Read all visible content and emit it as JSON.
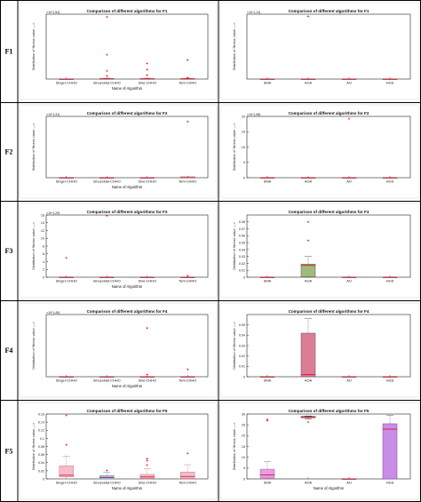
{
  "rows": [
    {
      "label": "F1"
    },
    {
      "label": "F2"
    },
    {
      "label": "F3"
    },
    {
      "label": "F4"
    },
    {
      "label": "F5"
    }
  ],
  "colors": {
    "grid_line": "#000000",
    "median": "#e8001c",
    "outlier": "#e8001c",
    "panel_bg": "#ffffff"
  },
  "chart_data": [
    {
      "type": "box",
      "title": "Comparison of different algorithms for F1",
      "ylabel": "Distribution of fitness value --->",
      "xlabel": "Name of Algorithm",
      "exponent": "×10^{-54}",
      "ylim": [
        0,
        2.4
      ],
      "yticks": [],
      "categories": [
        "Singer-CHHO",
        "Sinusoidal-CHHO",
        "Sine-CHHO",
        "Tent-CHHO"
      ],
      "boxes": [
        {
          "q1": 0,
          "median": 0,
          "q3": 0,
          "wlo": 0,
          "whi": 0,
          "outliers": [],
          "fill": "none",
          "stroke": "#555555"
        },
        {
          "q1": 0,
          "median": 0,
          "q3": 0.02,
          "wlo": 0,
          "whi": 0.03,
          "outliers": [
            2.3,
            0.9,
            0.3,
            0.12
          ],
          "fill": "none",
          "stroke": "#555555"
        },
        {
          "q1": 0,
          "median": 0,
          "q3": 0.02,
          "wlo": 0,
          "whi": 0.03,
          "outliers": [
            0.58,
            0.35,
            0.15
          ],
          "fill": "none",
          "stroke": "#555555"
        },
        {
          "q1": 0,
          "median": 0,
          "q3": 0.02,
          "wlo": 0,
          "whi": 0.03,
          "outliers": [
            0.7,
            0.05
          ],
          "fill": "none",
          "stroke": "#555555"
        }
      ]
    },
    {
      "type": "box",
      "title": "Comparison of different algorithms for F1",
      "ylabel": "Distribution of fitness value --->",
      "xlabel": "",
      "exponent": "×10^{-13}",
      "ylim": [
        0,
        15
      ],
      "yticks": [],
      "categories": [
        "SMA",
        "AOA",
        "AO",
        "HGS"
      ],
      "boxes": [
        {
          "q1": 0,
          "median": 0,
          "q3": 0,
          "wlo": 0,
          "whi": 0,
          "outliers": [],
          "fill": "none",
          "stroke": "#555555"
        },
        {
          "q1": 0,
          "median": 0,
          "q3": 0,
          "wlo": 0,
          "whi": 0,
          "outliers": [
            14.5
          ],
          "fill": "none",
          "stroke": "#555555"
        },
        {
          "q1": 0,
          "median": 0,
          "q3": 0,
          "wlo": 0,
          "whi": 0,
          "outliers": [],
          "fill": "none",
          "stroke": "#555555"
        },
        {
          "q1": 0,
          "median": 0,
          "q3": 0,
          "wlo": 0,
          "whi": 0,
          "outliers": [],
          "fill": "none",
          "stroke": "#555555"
        }
      ]
    },
    {
      "type": "box",
      "title": "Comparison of different algorithms for F2",
      "ylabel": "Distribution of fitness value --->",
      "xlabel": "Name of Algorithm",
      "exponent": "×10^{-31}",
      "ylim": [
        0,
        3.5
      ],
      "yticks": [],
      "categories": [
        "Singer-CHHO",
        "Sinusoidal-CHHO",
        "Sine-CHHO",
        "Tent-CHHO"
      ],
      "boxes": [
        {
          "q1": 0,
          "median": 0,
          "q3": 0,
          "wlo": 0,
          "whi": 0,
          "outliers": [],
          "fill": "none",
          "stroke": "#555555"
        },
        {
          "q1": 0,
          "median": 0,
          "q3": 0,
          "wlo": 0,
          "whi": 0,
          "outliers": [],
          "fill": "none",
          "stroke": "#555555"
        },
        {
          "q1": 0,
          "median": 0,
          "q3": 0,
          "wlo": 0,
          "whi": 0,
          "outliers": [],
          "fill": "none",
          "stroke": "#555555"
        },
        {
          "q1": 0,
          "median": 0,
          "q3": 0.05,
          "wlo": 0,
          "whi": 0.05,
          "outliers": [
            3.2
          ],
          "fill": "none",
          "stroke": "#555555"
        }
      ]
    },
    {
      "type": "box",
      "title": "Comparison of different algorithms for F2",
      "ylabel": "Distribution of fitness value --->",
      "xlabel": "",
      "exponent": "×10^{-98}",
      "ylim": [
        0,
        20
      ],
      "yticks": [
        "0",
        "5",
        "10",
        "15",
        "20"
      ],
      "categories": [
        "SMA",
        "AOA",
        "AO",
        "HGS"
      ],
      "boxes": [
        {
          "q1": 0,
          "median": 0,
          "q3": 0,
          "wlo": 0,
          "whi": 0,
          "outliers": [],
          "fill": "none",
          "stroke": "#555555"
        },
        {
          "q1": 0,
          "median": 0,
          "q3": 0,
          "wlo": 0,
          "whi": 0,
          "outliers": [],
          "fill": "none",
          "stroke": "#555555"
        },
        {
          "q1": 0,
          "median": 0,
          "q3": 0,
          "wlo": 0,
          "whi": 0,
          "outliers": [
            19.2
          ],
          "fill": "none",
          "stroke": "#555555"
        },
        {
          "q1": 0,
          "median": 0,
          "q3": 0,
          "wlo": 0,
          "whi": 0,
          "outliers": [],
          "fill": "none",
          "stroke": "#555555"
        }
      ]
    },
    {
      "type": "box",
      "title": "Comparison of different algorithms for F3",
      "ylabel": "Distribution of fitness value --->",
      "xlabel": "Name of Algorithm",
      "exponent": "×10^{-29}",
      "ylim": [
        0,
        16
      ],
      "yticks": [
        "0",
        "2",
        "4",
        "6",
        "8",
        "10",
        "12",
        "14",
        "16"
      ],
      "categories": [
        "Singer-CHHO",
        "Sinusoidal-CHHO",
        "Sine-CHHO",
        "Tent-CHHO"
      ],
      "boxes": [
        {
          "q1": 0,
          "median": 0,
          "q3": 0,
          "wlo": 0,
          "whi": 0,
          "outliers": [
            5
          ],
          "fill": "none",
          "stroke": "#555555"
        },
        {
          "q1": 0,
          "median": 0,
          "q3": 0,
          "wlo": 0,
          "whi": 0,
          "outliers": [
            15.8
          ],
          "fill": "none",
          "stroke": "#555555"
        },
        {
          "q1": 0,
          "median": 0,
          "q3": 0,
          "wlo": 0,
          "whi": 0,
          "outliers": [],
          "fill": "none",
          "stroke": "#555555"
        },
        {
          "q1": 0,
          "median": 0,
          "q3": 0,
          "wlo": 0,
          "whi": 0,
          "outliers": [
            0.4
          ],
          "fill": "none",
          "stroke": "#555555"
        }
      ]
    },
    {
      "type": "box",
      "title": "Comparison of different algorithms for F3",
      "ylabel": "Distribution of fitness value --->",
      "xlabel": "",
      "exponent": "",
      "ylim": [
        0,
        0.09
      ],
      "yticks": [
        "0",
        "0.01",
        "0.02",
        "0.03",
        "0.04",
        "0.05",
        "0.06",
        "0.07",
        "0.08"
      ],
      "categories": [
        "SMA",
        "AOA",
        "AO",
        "HGS"
      ],
      "boxes": [
        {
          "q1": 0,
          "median": 0,
          "q3": 0,
          "wlo": 0,
          "whi": 0,
          "outliers": [],
          "fill": "none",
          "stroke": "#555555"
        },
        {
          "q1": 0.0005,
          "median": 0.017,
          "q3": 0.019,
          "wlo": 0,
          "whi": 0.03,
          "outliers": [
            0.08,
            0.053
          ],
          "fill": "#9ebc78",
          "stroke": "#555555"
        },
        {
          "q1": 0,
          "median": 0,
          "q3": 0,
          "wlo": 0,
          "whi": 0,
          "outliers": [],
          "fill": "none",
          "stroke": "#555555"
        },
        {
          "q1": 0,
          "median": 0,
          "q3": 0,
          "wlo": 0,
          "whi": 0,
          "outliers": [],
          "fill": "none",
          "stroke": "#555555"
        }
      ]
    },
    {
      "type": "box",
      "title": "Comparison of different algorithms for F4",
      "ylabel": "Distribution of fitness value --->",
      "xlabel": "Name of Algorithm",
      "exponent": "×10^{-45}",
      "ylim": [
        0,
        3
      ],
      "yticks": [],
      "categories": [
        "Singer-CHHO",
        "Sinusoidal-CHHO",
        "Sine-CHHO",
        "Tent-CHHO"
      ],
      "boxes": [
        {
          "q1": 0,
          "median": 0,
          "q3": 0,
          "wlo": 0,
          "whi": 0,
          "outliers": [],
          "fill": "none",
          "stroke": "#555555"
        },
        {
          "q1": 0,
          "median": 0,
          "q3": 0,
          "wlo": 0,
          "whi": 0,
          "outliers": [],
          "fill": "none",
          "stroke": "#555555"
        },
        {
          "q1": 0,
          "median": 0,
          "q3": 0,
          "wlo": 0,
          "whi": 0,
          "outliers": [
            2.35,
            0.1
          ],
          "fill": "none",
          "stroke": "#555555"
        },
        {
          "q1": 0,
          "median": 0,
          "q3": 0,
          "wlo": 0,
          "whi": 0,
          "outliers": [
            0.35
          ],
          "fill": "none",
          "stroke": "#555555"
        }
      ]
    },
    {
      "type": "box",
      "title": "Comparison of different algorithms for F4",
      "ylabel": "Distribution of fitness value --->",
      "xlabel": "",
      "exponent": "",
      "ylim": [
        0,
        0.06
      ],
      "yticks": [
        "0",
        "0.01",
        "0.02",
        "0.03",
        "0.04",
        "0.05"
      ],
      "categories": [
        "SMA",
        "AOA",
        "AO",
        "HGS"
      ],
      "boxes": [
        {
          "q1": 0,
          "median": 0,
          "q3": 0,
          "wlo": 0,
          "whi": 0,
          "outliers": [],
          "fill": "none",
          "stroke": "#555555"
        },
        {
          "q1": 0,
          "median": 0.002,
          "q3": 0.042,
          "wlo": 0,
          "whi": 0.056,
          "outliers": [],
          "fill": "#dd7d95",
          "stroke": "#555555"
        },
        {
          "q1": 0,
          "median": 0,
          "q3": 0,
          "wlo": 0,
          "whi": 0,
          "outliers": [],
          "fill": "none",
          "stroke": "#555555"
        },
        {
          "q1": 0,
          "median": 0,
          "q3": 0,
          "wlo": 0,
          "whi": 0,
          "outliers": [],
          "fill": "none",
          "stroke": "#555555"
        }
      ]
    },
    {
      "type": "box",
      "title": "Comparison of different algorithms for F5",
      "ylabel": "Distribution of fitness value --->",
      "xlabel": "Name of Algorithm",
      "exponent": "",
      "ylim": [
        0,
        0.16
      ],
      "yticks": [
        "0",
        "0.02",
        "0.04",
        "0.06",
        "0.08",
        "0.1",
        "0.12",
        "0.14",
        "0.16"
      ],
      "categories": [
        "Singer-CHHO",
        "Sinusoidal-CHHO",
        "Sine-CHHO",
        "Tent-CHHO"
      ],
      "boxes": [
        {
          "q1": 0.005,
          "median": 0.009,
          "q3": 0.032,
          "wlo": 0,
          "whi": 0.056,
          "outliers": [
            0.157,
            0.084
          ],
          "fill": "#f4bcc8",
          "stroke": "#c77a8c"
        },
        {
          "q1": 0,
          "median": 0.003,
          "q3": 0.008,
          "wlo": 0,
          "whi": 0.016,
          "outliers": [
            0.021
          ],
          "fill": "#9dbfe3",
          "stroke": "#5f86b0"
        },
        {
          "q1": 0.002,
          "median": 0.005,
          "q3": 0.011,
          "wlo": 0,
          "whi": 0.025,
          "outliers": [
            0.05,
            0.045,
            0.034
          ],
          "fill": "#f4bcc8",
          "stroke": "#c77a8c"
        },
        {
          "q1": 0.001,
          "median": 0.006,
          "q3": 0.017,
          "wlo": 0,
          "whi": 0.035,
          "outliers": [
            0.063
          ],
          "fill": "#f4bcc8",
          "stroke": "#c77a8c"
        }
      ]
    },
    {
      "type": "box",
      "title": "Comparison of different algorithms for F5",
      "ylabel": "Distribution of fitness value --->",
      "xlabel": "Name of Algorithm",
      "exponent": "",
      "ylim": [
        0,
        30
      ],
      "yticks": [
        "0",
        "5",
        "10",
        "15",
        "20",
        "25",
        "30"
      ],
      "categories": [
        "SMA",
        "AOA",
        "AO",
        "HGS"
      ],
      "boxes": [
        {
          "q1": 0.4,
          "median": 1.8,
          "q3": 4.5,
          "wlo": 0,
          "whi": 8,
          "outliers": [
            27.5,
            27
          ],
          "fill": "#e89ce6",
          "stroke": "#a060a0"
        },
        {
          "q1": 28.3,
          "median": 28.7,
          "q3": 28.9,
          "wlo": 27.8,
          "whi": 29.1,
          "outliers": [
            26.3
          ],
          "fill": "#a9a9a9",
          "stroke": "#333333"
        },
        {
          "q1": 0,
          "median": 0,
          "q3": 0,
          "wlo": 0,
          "whi": 0,
          "outliers": [],
          "fill": "none",
          "stroke": "#555555"
        },
        {
          "q1": 0,
          "median": 23,
          "q3": 25.5,
          "wlo": 0,
          "whi": 29.5,
          "outliers": [],
          "fill": "#c88de6",
          "stroke": "#7e3fa0"
        }
      ]
    }
  ]
}
